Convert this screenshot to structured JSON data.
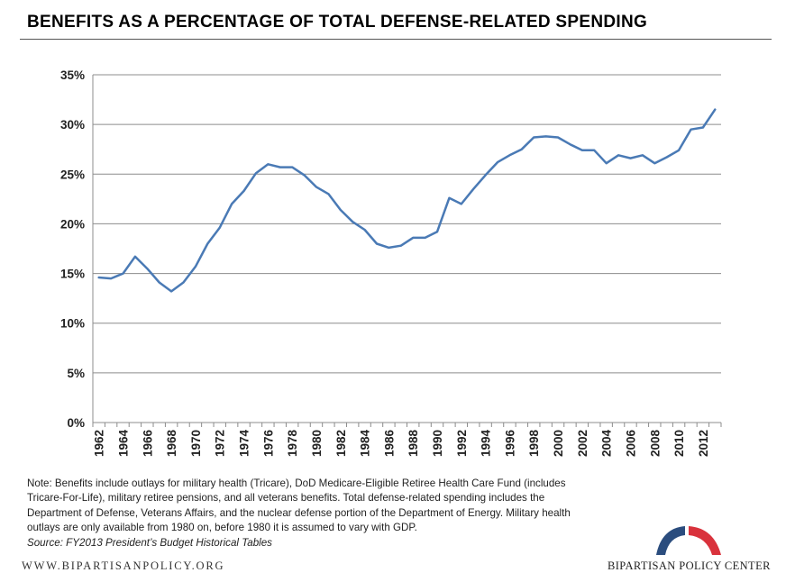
{
  "header": {
    "title": "BENEFITS AS A PERCENTAGE OF TOTAL DEFENSE-RELATED SPENDING"
  },
  "chart_data": {
    "type": "line",
    "title": "BENEFITS AS A PERCENTAGE OF TOTAL DEFENSE-RELATED SPENDING",
    "xlabel": "",
    "ylabel": "",
    "ylim": [
      0,
      35
    ],
    "y_ticks": [
      "0%",
      "5%",
      "10%",
      "15%",
      "20%",
      "25%",
      "30%",
      "35%"
    ],
    "x_ticks": [
      "1962",
      "1964",
      "1966",
      "1968",
      "1970",
      "1972",
      "1974",
      "1976",
      "1978",
      "1980",
      "1982",
      "1984",
      "1986",
      "1988",
      "1990",
      "1992",
      "1994",
      "1996",
      "1998",
      "2000",
      "2002",
      "2004",
      "2006",
      "2008",
      "2010",
      "2012"
    ],
    "grid": "horizontal",
    "legend": "none",
    "line_color": "#4a7ab5",
    "x": [
      1962,
      1963,
      1964,
      1965,
      1966,
      1967,
      1968,
      1969,
      1970,
      1971,
      1972,
      1973,
      1974,
      1975,
      1976,
      1977,
      1978,
      1979,
      1980,
      1981,
      1982,
      1983,
      1984,
      1985,
      1986,
      1987,
      1988,
      1989,
      1990,
      1991,
      1992,
      1993,
      1994,
      1995,
      1996,
      1997,
      1998,
      1999,
      2000,
      2001,
      2002,
      2003,
      2004,
      2005,
      2006,
      2007,
      2008,
      2009,
      2010,
      2011,
      2012,
      2013
    ],
    "series": [
      {
        "values": [
          14.6,
          14.5,
          15.0,
          16.7,
          15.5,
          14.1,
          13.2,
          14.1,
          15.7,
          18.0,
          19.6,
          22.0,
          23.3,
          25.1,
          26.0,
          25.7,
          25.7,
          24.9,
          23.7,
          23.0,
          21.4,
          20.2,
          19.4,
          18.0,
          17.6,
          17.8,
          18.6,
          18.6,
          19.2,
          22.6,
          22.0,
          23.5,
          24.9,
          26.2,
          26.9,
          27.5,
          28.7,
          28.8,
          28.7,
          28.0,
          27.4,
          27.4,
          26.1,
          26.9,
          26.6,
          26.9,
          26.1,
          26.7,
          27.4,
          29.5,
          29.7,
          31.5
        ]
      }
    ]
  },
  "footer": {
    "note_lines": [
      "Note: Benefits include outlays for military health (Tricare), DoD Medicare-Eligible Retiree Health Care Fund (includes",
      "Tricare-For-Life), military retiree pensions, and all veterans benefits.  Total defense-related spending includes the",
      "Department of Defense, Veterans Affairs, and the nuclear defense portion of the Department of Energy.  Military health",
      "outlays are only available from 1980 on, before 1980 it is assumed to vary with GDP."
    ],
    "source": "Source: FY2013 President’s Budget Historical Tables",
    "website": "WWW.BIPARTISANPOLICY.ORG",
    "org_name": "BIPARTISAN POLICY CENTER",
    "logo_colors": {
      "blue": "#2b4d7e",
      "red": "#d9323c"
    }
  }
}
